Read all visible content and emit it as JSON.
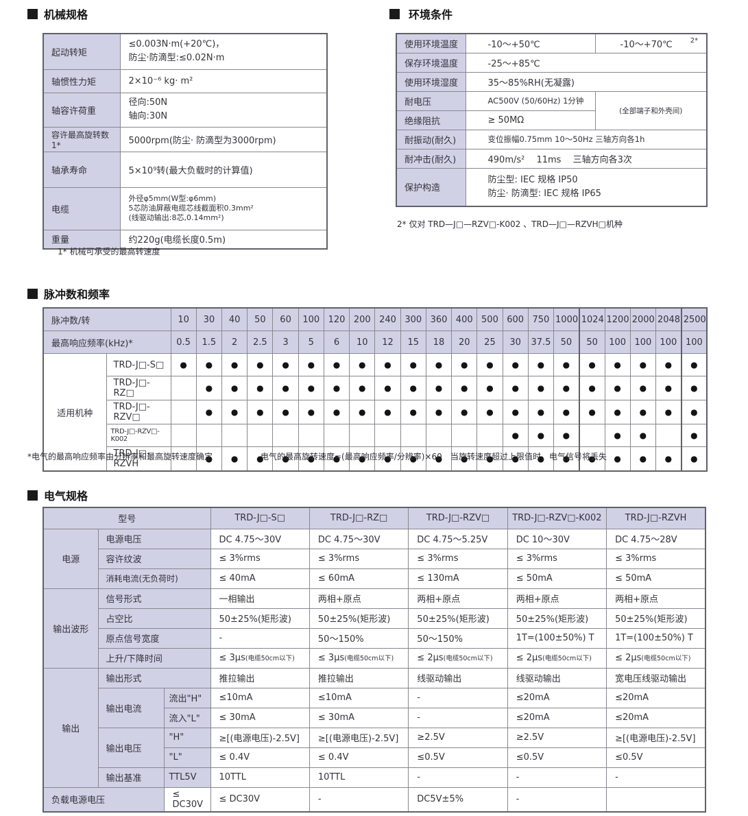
{
  "colors": {
    "accent_lavender": "#d1d1e6",
    "border_gray": "#87878f",
    "text": "#33333a"
  },
  "mechanical": {
    "title": "机械规格",
    "rows": [
      {
        "label": "起动转矩",
        "lines": [
          "≤0.003N·m(+20℃)，",
          "防尘·防滴型:≤0.02N·m"
        ]
      },
      {
        "label": "轴惯性力矩",
        "lines": [
          "2×10⁻⁶ kg· m²"
        ]
      },
      {
        "label": "轴容许荷重",
        "lines": [
          "径向:50N",
          "轴向:30N"
        ]
      },
      {
        "label": "容许最高旋转数 1*",
        "lines": [
          "5000rpm(防尘· 防滴型为3000rpm)"
        ]
      },
      {
        "label": "轴承寿命",
        "lines": [
          "5×10⁹转(最大负载时的计算值)"
        ]
      },
      {
        "label": "电缆",
        "lines": [
          "外径φ5mm(W型:φ6mm)",
          "5芯防油屏蔽电缆芯线截面积0.3mm²",
          "(线驱动输出:8芯,0.14mm²)"
        ]
      },
      {
        "label": "重量",
        "lines": [
          "约220g(电缆长度0.5m)"
        ]
      }
    ],
    "footnote": "1* 机械可承受的最高转速度"
  },
  "environment": {
    "title": "环境条件",
    "rows": [
      {
        "label": "使用环境温度",
        "value": "-10～+50℃",
        "value2": "-10～+70℃",
        "note": "2*"
      },
      {
        "label": "保存环境温度",
        "value": "-25～+85℃"
      },
      {
        "label": "使用环境湿度",
        "value": "35～85%RH(无凝露)"
      },
      {
        "label": "耐电压",
        "value": "AC500V (50/60Hz)  1分钟",
        "side_note": "(全部端子和外壳间)"
      },
      {
        "label": "绝缘阻抗",
        "value": "≥ 50MΩ"
      },
      {
        "label": "耐振动(耐久)",
        "value": "变位振幅0.75mm 10～50Hz 三轴方向各1h"
      },
      {
        "label": "耐冲击(耐久)",
        "value": "490m/s²　 11ms　 三轴方向各3次"
      },
      {
        "label": "保护构造",
        "lines": [
          "防尘型: IEC 规格  IP50",
          "防尘· 防滴型: IEC 规格  IP65"
        ]
      }
    ],
    "footnote": "2* 仅对 TRD—J□—RZV□-K002 、TRD—J□—RZVH□机种"
  },
  "pulse": {
    "title": "脉冲数和频率",
    "header_label": "脉冲数/转",
    "freq_label": "最高响应频率(kHz)*",
    "group_label": "适用机种",
    "pulses": [
      "10",
      "30",
      "40",
      "50",
      "60",
      "100",
      "120",
      "200",
      "240",
      "300",
      "360",
      "400",
      "500",
      "600",
      "750",
      "1000",
      "1024",
      "1200",
      "2000",
      "2048",
      "2500"
    ],
    "freqs": [
      "0.5",
      "1.5",
      "2",
      "2.5",
      "3",
      "5",
      "6",
      "10",
      "12",
      "15",
      "18",
      "20",
      "25",
      "30",
      "37.5",
      "50",
      "50",
      "100",
      "100",
      "100",
      "100"
    ],
    "models": [
      {
        "name": "TRD-J□-S□",
        "dots": [
          1,
          1,
          1,
          1,
          1,
          1,
          1,
          1,
          1,
          1,
          1,
          1,
          1,
          1,
          1,
          1,
          1,
          1,
          1,
          1,
          1
        ]
      },
      {
        "name": "TRD-J□-RZ□",
        "dots": [
          0,
          1,
          1,
          1,
          1,
          1,
          1,
          1,
          1,
          1,
          1,
          1,
          1,
          1,
          1,
          1,
          1,
          1,
          1,
          1,
          1
        ]
      },
      {
        "name": "TRD-J□-RZV□",
        "dots": [
          0,
          1,
          1,
          1,
          1,
          1,
          1,
          1,
          1,
          1,
          1,
          1,
          1,
          1,
          1,
          1,
          1,
          1,
          1,
          1,
          1
        ]
      },
      {
        "name": "TRD-J□-RZV□-K002",
        "dots": [
          0,
          0,
          0,
          0,
          0,
          0,
          0,
          0,
          0,
          0,
          0,
          0,
          0,
          1,
          1,
          1,
          0,
          1,
          1,
          0,
          1
        ]
      },
      {
        "name": "TRD-J□-RZVH",
        "dots": [
          0,
          1,
          1,
          1,
          1,
          1,
          1,
          1,
          1,
          1,
          1,
          1,
          1,
          1,
          1,
          1,
          1,
          1,
          1,
          1,
          1
        ]
      }
    ],
    "footnotes": [
      "*电气的最高响应频率由分辨率和最高旋转速度确定",
      "电气的最高旋转速度=(最高响应频率/分辨率)×60",
      "当旋转速度超过上限值时，电气信号将丢失"
    ]
  },
  "electrical": {
    "title": "电气规格",
    "model_label": "型号",
    "models": [
      "TRD-J□-S□",
      "TRD-J□-RZ□",
      "TRD-J□-RZV□",
      "TRD-J□-RZV□-K002",
      "TRD-J□-RZVH"
    ],
    "groups": {
      "power": "电源",
      "waveform": "输出波形",
      "output": "输出"
    },
    "labels": {
      "supply_voltage": "电源电压",
      "ripple": "容许纹波",
      "current": "消耗电流(无负荷时)",
      "signal_form": "信号形式",
      "duty": "占空比",
      "origin_width": "原点信号宽度",
      "rise_fall": "上升/下降时间",
      "output_form": "输出形式",
      "output_current": "输出电流",
      "out_h": "流出\"H\"",
      "in_l": "流入\"L\"",
      "output_voltage": "输出电压",
      "vh": "\"H\"",
      "vl": "\"L\"",
      "output_ref": "输出基准",
      "ttl5v": "TTL5V",
      "load_voltage": "负载电源电压"
    },
    "values": {
      "supply_voltage": [
        "DC 4.75～30V",
        "DC 4.75～30V",
        "DC 4.75～5.25V",
        "DC 10～30V",
        "DC 4.75～28V"
      ],
      "ripple": [
        "≤ 3%rms",
        "≤ 3%rms",
        "≤ 3%rms",
        "≤ 3%rms",
        "≤ 3%rms"
      ],
      "current": [
        "≤ 40mA",
        "≤ 60mA",
        "≤ 130mA",
        "≤ 50mA",
        "≤ 50mA"
      ],
      "signal_form": [
        "一相输出",
        "两相+原点",
        "两相+原点",
        "两相+原点",
        "两相+原点"
      ],
      "duty": [
        "50±25%(矩形波)",
        "50±25%(矩形波)",
        "50±25%(矩形波)",
        "50±25%(矩形波)",
        "50±25%(矩形波)"
      ],
      "origin_width": [
        "-",
        "50～150%",
        "50～150%",
        "1T=(100±50%) T",
        "1T=(100±50%) T"
      ],
      "rise_fall": [
        "≤ 3μs(电缆50cm以下)",
        "≤ 3μs(电缆50cm以下)",
        "≤ 2μs(电缆50cm以下)",
        "≤ 2μs(电缆50cm以下)",
        "≤ 2μs(电缆50cm以下)"
      ],
      "output_form": [
        "推拉输出",
        "推拉输出",
        "线驱动输出",
        "线驱动输出",
        "宽电压线驱动输出"
      ],
      "out_h": [
        "≤10mA",
        "≤10mA",
        "-",
        "≤20mA",
        "≤20mA"
      ],
      "in_l": [
        "≤ 30mA",
        "≤ 30mA",
        "-",
        "≤20mA",
        "≤20mA"
      ],
      "vh": [
        "≥[(电源电压)-2.5V]",
        "≥[(电源电压)-2.5V]",
        "≥2.5V",
        "≥2.5V",
        "≥[(电源电压)-2.5V]"
      ],
      "vl": [
        "≤ 0.4V",
        "≤ 0.4V",
        "≤0.5V",
        "≤0.5V",
        "≤0.5V"
      ],
      "output_ref": [
        "10TTL",
        "10TTL",
        "-",
        "-",
        "-"
      ],
      "load_voltage": [
        "≤ DC30V",
        "≤ DC30V",
        "-",
        "DC5V±5%",
        "-"
      ]
    }
  }
}
